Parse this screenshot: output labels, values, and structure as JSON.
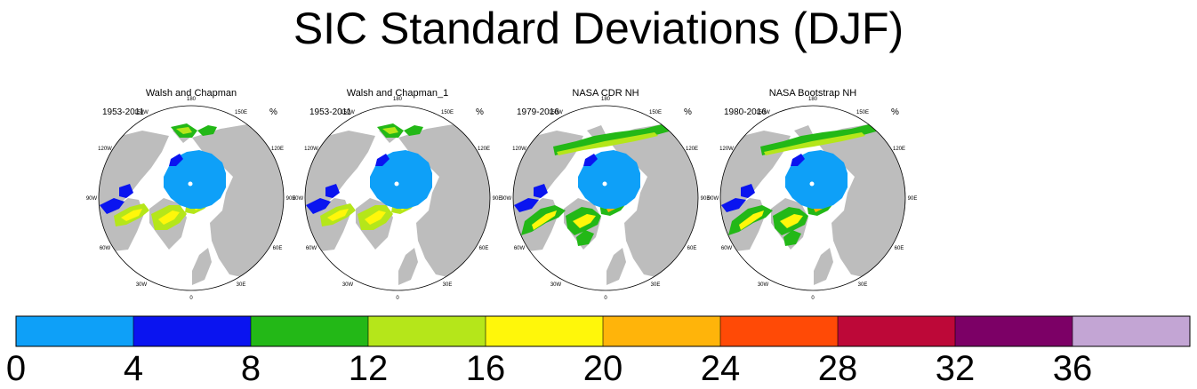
{
  "title": "SIC Standard Deviations (DJF)",
  "colors": {
    "land": "#bdbdbd",
    "ocean": "#ffffff",
    "outline": "#555555"
  },
  "chart_data": [
    {
      "type": "heatmap",
      "title": "Walsh and Chapman",
      "period": "1953-2011",
      "units": "%",
      "lon_labels": [
        "180",
        "150E",
        "120E",
        "90E",
        "60E",
        "30E",
        "0",
        "30W",
        "60W",
        "90W",
        "120W",
        "150W"
      ],
      "pattern": "walsh"
    },
    {
      "type": "heatmap",
      "title": "Walsh and Chapman_1",
      "period": "1953-2011",
      "units": "%",
      "lon_labels": [
        "180",
        "150E",
        "120E",
        "90E",
        "60E",
        "30E",
        "0",
        "30W",
        "60W",
        "90W",
        "120W",
        "150W"
      ],
      "pattern": "walsh"
    },
    {
      "type": "heatmap",
      "title": "NASA CDR NH",
      "period": "1979-2016",
      "units": "%",
      "lon_labels": [
        "180",
        "150E",
        "120E",
        "90E",
        "60E",
        "30E",
        "0",
        "30W",
        "60W",
        "90W",
        "120W",
        "150W"
      ],
      "pattern": "nasa"
    },
    {
      "type": "heatmap",
      "title": "NASA Bootstrap NH",
      "period": "1980-2016",
      "units": "%",
      "lon_labels": [
        "180",
        "150E",
        "120E",
        "90E",
        "60E",
        "30E",
        "0",
        "30W",
        "60W",
        "90W",
        "120W",
        "150W"
      ],
      "pattern": "nasa"
    }
  ],
  "colorbar": {
    "levels": [
      "0",
      "4",
      "8",
      "12",
      "16",
      "20",
      "24",
      "28",
      "32",
      "36"
    ],
    "colors": [
      "#0ea0f8",
      "#0a14f0",
      "#23b817",
      "#b5e61a",
      "#fff70a",
      "#ffb40a",
      "#ff4a06",
      "#bd0838",
      "#7c0066",
      "#c3a5d4"
    ]
  }
}
